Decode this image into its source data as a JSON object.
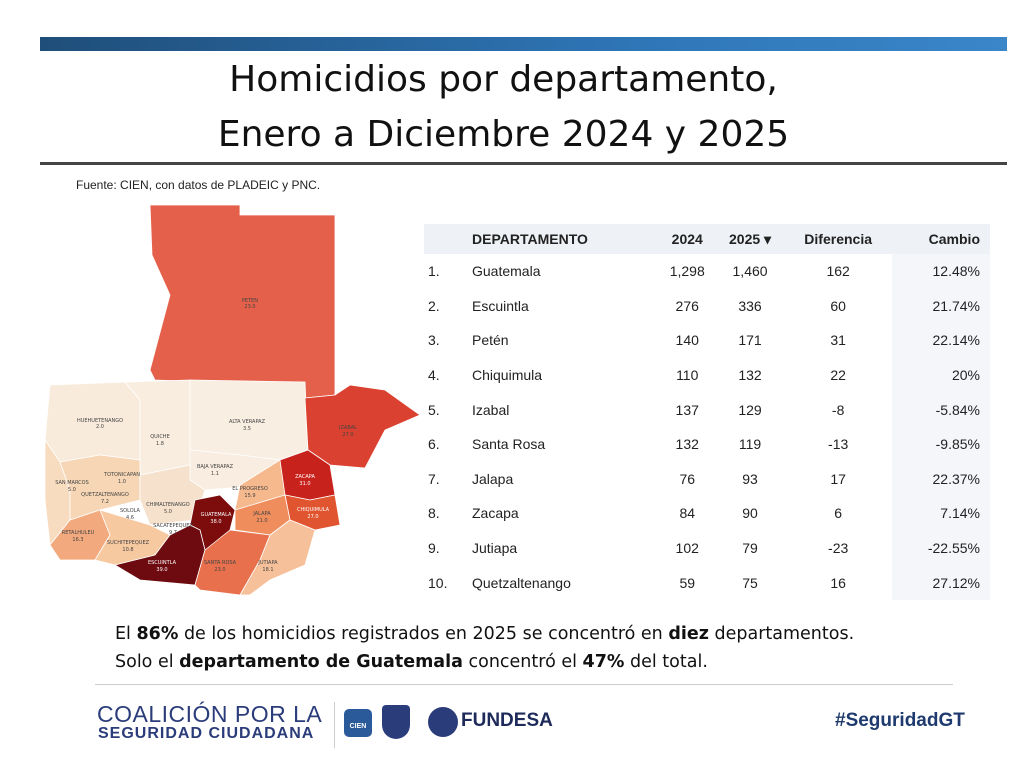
{
  "title": {
    "line1": "Homicidios por departamento,",
    "line2": "Enero a Diciembre 2024 y 2025"
  },
  "source": "Fuente: CIEN, con datos de PLADEIC y PNC.",
  "map": {
    "labels": [
      {
        "name": "PETEN",
        "value": "23.0"
      },
      {
        "name": "HUEHUETENANGO",
        "value": "2.0"
      },
      {
        "name": "QUICHE",
        "value": "1.8"
      },
      {
        "name": "ALTA VERAPAZ",
        "value": "3.5"
      },
      {
        "name": "IZABAL",
        "value": "27.0"
      },
      {
        "name": "BAJA VERAPAZ",
        "value": "1.1"
      },
      {
        "name": "TOTONICAPAN",
        "value": "1.0"
      },
      {
        "name": "SAN MARCOS",
        "value": "5.0"
      },
      {
        "name": "QUETZALTENANGO",
        "value": "7.2"
      },
      {
        "name": "ZACAPA",
        "value": "31.0"
      },
      {
        "name": "EL PROGRESO",
        "value": "15.9"
      },
      {
        "name": "SOLOLA",
        "value": "4.6"
      },
      {
        "name": "CHIMALTENANGO",
        "value": "5.0"
      },
      {
        "name": "SACATEPEQUEZ",
        "value": "9.7"
      },
      {
        "name": "GUATEMALA",
        "value": "38.0"
      },
      {
        "name": "JALAPA",
        "value": "21.0"
      },
      {
        "name": "CHIQUIMULA",
        "value": "27.0"
      },
      {
        "name": "RETALHULEU",
        "value": "16.3"
      },
      {
        "name": "SUCHITEPEQUEZ",
        "value": "10.8"
      },
      {
        "name": "ESCUINTLA",
        "value": "39.0"
      },
      {
        "name": "SANTA ROSA",
        "value": "23.0"
      },
      {
        "name": "JUTIAPA",
        "value": "18.1"
      }
    ]
  },
  "table": {
    "headers": [
      "",
      "DEPARTAMENTO",
      "2024",
      "2025 ▾",
      "Diferencia",
      "Cambio"
    ],
    "rows": [
      [
        "1.",
        "Guatemala",
        "1,298",
        "1,460",
        "162",
        "12.48%"
      ],
      [
        "2.",
        "Escuintla",
        "276",
        "336",
        "60",
        "21.74%"
      ],
      [
        "3.",
        "Petén",
        "140",
        "171",
        "31",
        "22.14%"
      ],
      [
        "4.",
        "Chiquimula",
        "110",
        "132",
        "22",
        "20%"
      ],
      [
        "5.",
        "Izabal",
        "137",
        "129",
        "-8",
        "-5.84%"
      ],
      [
        "6.",
        "Santa Rosa",
        "132",
        "119",
        "-13",
        "-9.85%"
      ],
      [
        "7.",
        "Jalapa",
        "76",
        "93",
        "17",
        "22.37%"
      ],
      [
        "8.",
        "Zacapa",
        "84",
        "90",
        "6",
        "7.14%"
      ],
      [
        "9.",
        "Jutiapa",
        "102",
        "79",
        "-23",
        "-22.55%"
      ],
      [
        "10.",
        "Quetzaltenango",
        "59",
        "75",
        "16",
        "27.12%"
      ]
    ]
  },
  "summary": {
    "l1a": "El ",
    "l1b": "86%",
    "l1c": " de los homicidios registrados en 2025 se concentró en ",
    "l1d": "diez",
    "l1e": " departamentos.",
    "l2a": "Solo el ",
    "l2b": "departamento de Guatemala",
    "l2c": " concentró el ",
    "l2d": "47%",
    "l2e": " del total."
  },
  "footer": {
    "coalition1": "COALICIÓN POR LA",
    "coalition2": "SEGURIDAD CIUDADANA",
    "cien": "CIEN",
    "fundesa": "FUNDESA",
    "hashtag": "#SeguridadGT"
  }
}
